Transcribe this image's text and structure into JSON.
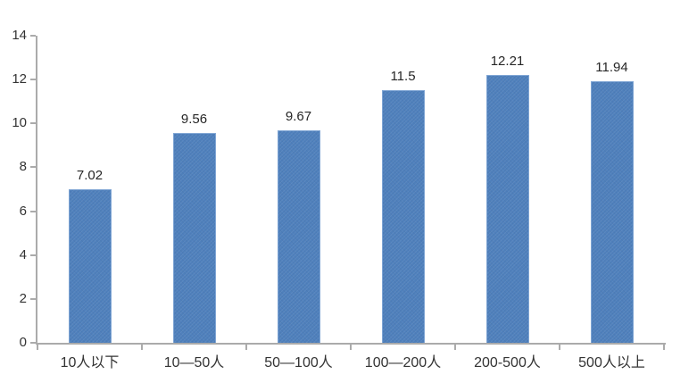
{
  "chart_data": {
    "type": "bar",
    "title": "",
    "xlabel": "",
    "ylabel": "",
    "categories": [
      "10人以下",
      "10—50人",
      "50—100人",
      "100—200人",
      "200-500人",
      "500人以上"
    ],
    "values": [
      7.02,
      9.56,
      9.67,
      11.5,
      12.21,
      11.94
    ],
    "value_labels": [
      "7.02",
      "9.56",
      "9.67",
      "11.5",
      "12.21",
      "11.94"
    ],
    "ylim": [
      0,
      14
    ],
    "yticks": [
      "0",
      "2",
      "4",
      "6",
      "8",
      "10",
      "12",
      "14"
    ],
    "grid": false,
    "legend": false,
    "background": "#ffffff",
    "colors": {
      "bar_fill": "#4f80bc",
      "bar_border": "#7fa5d4",
      "axis": "#ababab",
      "tick_label": "#333333",
      "value_label": "#262626"
    }
  }
}
